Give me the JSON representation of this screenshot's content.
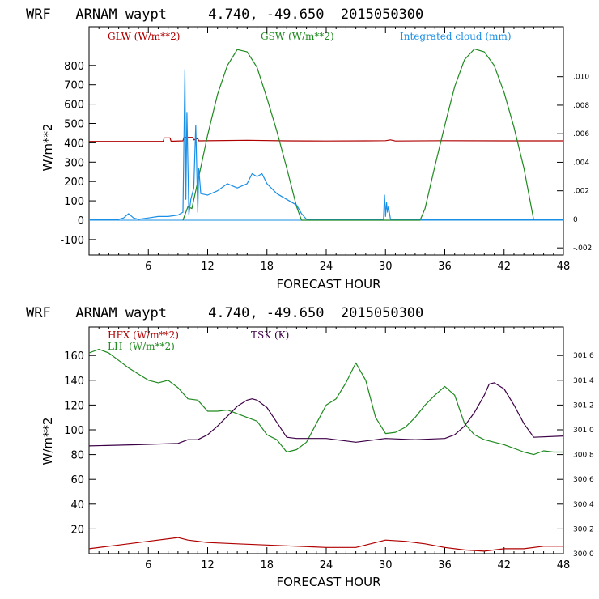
{
  "colors": {
    "red": "#b00000",
    "green": "#1f8a1f",
    "blue": "#1a8fe6",
    "purple": "#3c0046"
  },
  "chart_data": [
    {
      "type": "line",
      "title": "WRF   ARNAM waypt     4.740, -49.650  2015050300",
      "xlabel": "FORECAST HOUR",
      "ylabel": "W/m**2",
      "xlim": [
        0,
        48
      ],
      "ylim": [
        -180,
        1000
      ],
      "y2lim": [
        -0.0025,
        0.0135
      ],
      "xticks": [
        "6",
        "12",
        "18",
        "24",
        "30",
        "36",
        "42",
        "48"
      ],
      "yticks": [
        "-100",
        "0",
        "100",
        "200",
        "300",
        "400",
        "500",
        "600",
        "700",
        "800"
      ],
      "y2ticks": [
        "-.002",
        "0",
        ".002",
        ".004",
        ".006",
        ".008",
        ".010"
      ],
      "series": [
        {
          "name": "GLW (W/m**2)",
          "axis": "left",
          "color": "red",
          "x": [
            0,
            7.5,
            7.6,
            8.2,
            8.3,
            9.5,
            9.6,
            10.5,
            10.6,
            11,
            11.1,
            16,
            20,
            24,
            28,
            30,
            30.5,
            31,
            36,
            42,
            48
          ],
          "y": [
            407,
            407,
            425,
            425,
            408,
            410,
            428,
            428,
            415,
            422,
            410,
            413,
            410,
            409,
            410,
            411,
            415,
            409,
            411,
            410,
            410
          ]
        },
        {
          "name": "GSW (W/m**2)",
          "axis": "left",
          "color": "green",
          "x": [
            9.5,
            10,
            10.4,
            11,
            12,
            13,
            14,
            15,
            16,
            17,
            18,
            19,
            20,
            21,
            21.5,
            33.5,
            34,
            35,
            36,
            37,
            38,
            39,
            40,
            41,
            42,
            43,
            44,
            45
          ],
          "y": [
            0,
            70,
            60,
            200,
            440,
            650,
            800,
            882,
            870,
            790,
            630,
            460,
            270,
            70,
            0,
            0,
            60,
            280,
            490,
            690,
            830,
            885,
            870,
            800,
            660,
            480,
            270,
            0
          ]
        },
        {
          "name": "Integrated cloud (mm)",
          "axis": "right",
          "color": "blue",
          "x": [
            0,
            3,
            3.5,
            4,
            4.5,
            5,
            6,
            7,
            8,
            9,
            9.5,
            9.7,
            9.8,
            9.9,
            10.1,
            10.3,
            10.6,
            10.8,
            11,
            11.1,
            11.3,
            12,
            13,
            14,
            15,
            16,
            16.5,
            17,
            17.5,
            18,
            19,
            20,
            21,
            21.5,
            22,
            29.8,
            29.9,
            30,
            30.1,
            30.2,
            30.3,
            30.5,
            31,
            48
          ],
          "y": [
            0,
            0,
            0.0001,
            0.0004,
            0.0001,
            0,
            0.0001,
            0.0002,
            0.0002,
            0.0003,
            0.0005,
            0.0105,
            0.0014,
            0.0075,
            0.0003,
            0.0014,
            0.0022,
            0.0066,
            0.0005,
            0.0036,
            0.0018,
            0.0017,
            0.002,
            0.0025,
            0.0022,
            0.0025,
            0.0032,
            0.003,
            0.0032,
            0.0025,
            0.0018,
            0.0014,
            0.001,
            0.0004,
            0,
            0,
            0.0017,
            0.0002,
            0.0012,
            0.0005,
            0.0009,
            0,
            0,
            0
          ]
        }
      ]
    },
    {
      "type": "line",
      "title": "WRF   ARNAM waypt     4.740, -49.650  2015050300",
      "xlabel": "FORECAST HOUR",
      "ylabel": "W/m**2",
      "xlim": [
        0,
        48
      ],
      "ylim": [
        0,
        183
      ],
      "y2lim": [
        300.0,
        301.83
      ],
      "xticks": [
        "6",
        "12",
        "18",
        "24",
        "30",
        "36",
        "42",
        "48"
      ],
      "yticks": [
        "20",
        "40",
        "60",
        "80",
        "100",
        "120",
        "140",
        "160"
      ],
      "y2ticks": [
        "300.0",
        "300.2",
        "300.4",
        "300.6",
        "300.8",
        "301.0",
        "301.2",
        "301.4",
        "301.6"
      ],
      "series": [
        {
          "name": "HFX (W/m**2)",
          "axis": "left",
          "color": "red",
          "x": [
            0,
            3,
            6,
            9,
            10,
            12,
            15,
            18,
            21,
            24,
            27,
            30,
            32,
            34,
            36,
            38,
            40,
            42,
            44,
            46,
            48
          ],
          "y": [
            4,
            7,
            10,
            13,
            11,
            9,
            8,
            7,
            6,
            5,
            5,
            11,
            10,
            8,
            5,
            3,
            2,
            4,
            4,
            6,
            6
          ]
        },
        {
          "name": "LH  (W/m**2)",
          "axis": "left",
          "color": "green",
          "x": [
            0,
            1,
            2,
            3,
            4,
            5,
            6,
            7,
            8,
            9,
            10,
            11,
            12,
            13,
            14,
            15,
            16,
            17,
            18,
            19,
            20,
            21,
            22,
            23,
            24,
            25,
            26,
            27,
            28,
            29,
            30,
            31,
            32,
            33,
            34,
            35,
            36,
            37,
            38,
            39,
            40,
            41,
            42,
            43,
            44,
            45,
            46,
            47,
            48
          ],
          "y": [
            162,
            165,
            162,
            156,
            150,
            145,
            140,
            138,
            140,
            134,
            125,
            124,
            115,
            115,
            116,
            113,
            110,
            107,
            96,
            92,
            82,
            84,
            90,
            105,
            120,
            125,
            138,
            154,
            140,
            110,
            97,
            98,
            102,
            110,
            120,
            128,
            135,
            128,
            105,
            96,
            92,
            90,
            88,
            85,
            82,
            80,
            83,
            82,
            82
          ]
        },
        {
          "name": "TSK (K)",
          "axis": "right",
          "color": "purple",
          "x": [
            0,
            5,
            9,
            10,
            11,
            12,
            13,
            14,
            15,
            16,
            16.5,
            17,
            18,
            19,
            20,
            21,
            24,
            27,
            30,
            33,
            36,
            37,
            38,
            39,
            40,
            40.5,
            41,
            42,
            43,
            44,
            45,
            48
          ],
          "y": [
            300.87,
            300.88,
            300.89,
            300.92,
            300.92,
            300.96,
            301.03,
            301.11,
            301.19,
            301.24,
            301.25,
            301.24,
            301.18,
            301.06,
            300.94,
            300.93,
            300.93,
            300.9,
            300.93,
            300.92,
            300.93,
            300.96,
            301.03,
            301.14,
            301.28,
            301.37,
            301.38,
            301.33,
            301.2,
            301.05,
            300.94,
            300.95
          ]
        }
      ]
    }
  ]
}
